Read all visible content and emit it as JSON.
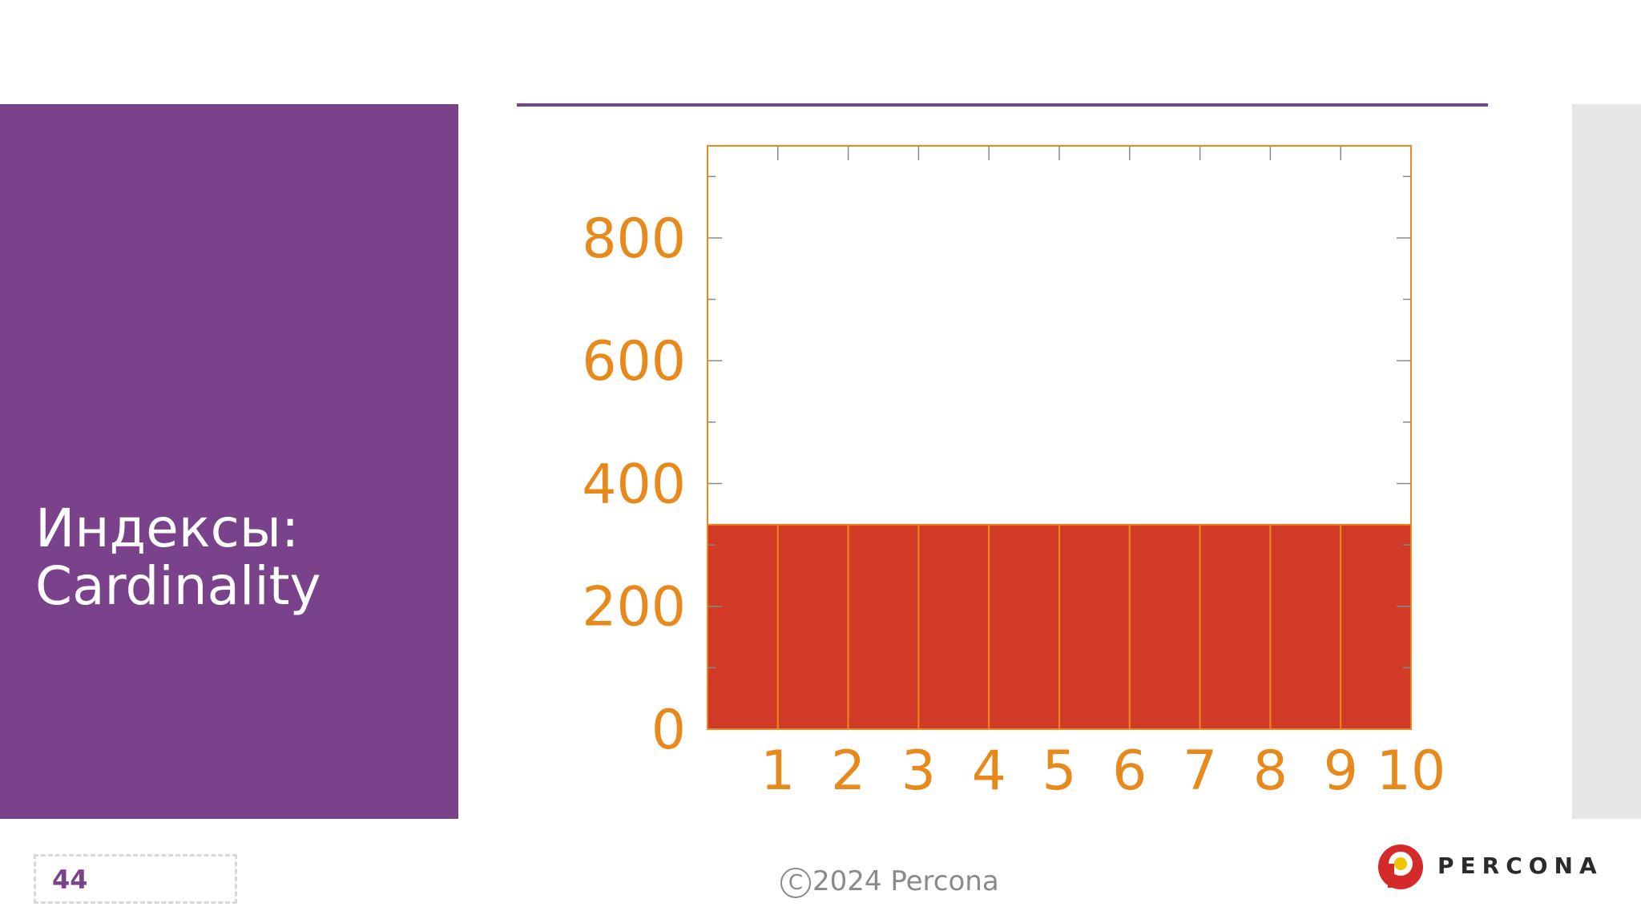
{
  "slide": {
    "title_line1": "Индексы:",
    "title_line2": "Cardinality",
    "page_number": "44",
    "copyright_symbol": "C",
    "copyright_text": "2024 Percona",
    "logo_text": "PERCONA"
  },
  "colors": {
    "accent": "#7b428c",
    "bar_fill": "#d13a27",
    "axis": "#e8891c",
    "logo_red": "#d52a2a",
    "logo_yellow": "#f5c400"
  },
  "chart_data": {
    "type": "bar",
    "categories": [
      "1",
      "2",
      "3",
      "4",
      "5",
      "6",
      "7",
      "8",
      "9",
      "10"
    ],
    "values": [
      333,
      333,
      333,
      333,
      333,
      333,
      333,
      333,
      333,
      333
    ],
    "yticks": [
      0,
      200,
      400,
      600,
      800
    ],
    "ylim": [
      0,
      950
    ],
    "grid": false,
    "title": "",
    "xlabel": "",
    "ylabel": ""
  }
}
